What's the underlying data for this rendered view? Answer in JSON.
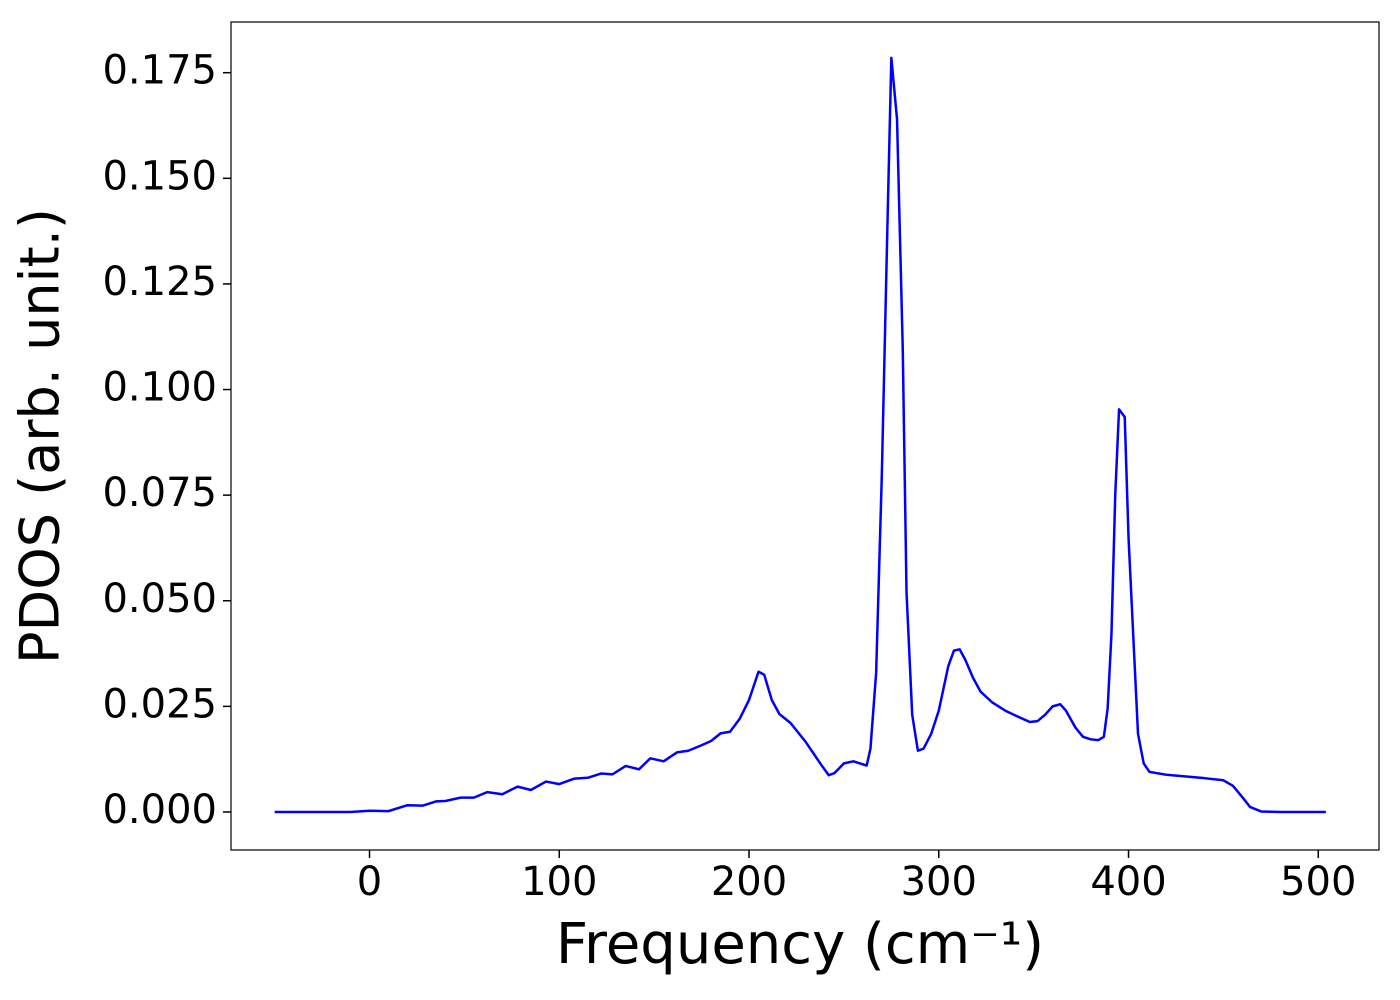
{
  "chart_data": {
    "type": "line",
    "xlabel": "Frequency (cm⁻¹)",
    "ylabel": "PDOS (arb. unit.)",
    "xlim": [
      -73,
      532
    ],
    "ylim": [
      -0.009,
      0.187
    ],
    "xticks": [
      0,
      100,
      200,
      300,
      400,
      500
    ],
    "yticks": [
      {
        "value": 0,
        "label": "0.000"
      },
      {
        "value": 0.025,
        "label": "0.025"
      },
      {
        "value": 0.05,
        "label": "0.050"
      },
      {
        "value": 0.075,
        "label": "0.075"
      },
      {
        "value": 0.1,
        "label": "0.100"
      },
      {
        "value": 0.125,
        "label": "0.125"
      },
      {
        "value": 0.15,
        "label": "0.150"
      },
      {
        "value": 0.175,
        "label": "0.175"
      }
    ],
    "grid": false,
    "x": [
      -50,
      -10,
      0,
      10,
      20,
      28,
      35,
      40,
      48,
      55,
      62,
      70,
      78,
      85,
      93,
      100,
      108,
      115,
      122,
      128,
      135,
      142,
      148,
      155,
      162,
      168,
      175,
      180,
      185,
      190,
      195,
      200,
      205,
      208,
      212,
      216,
      222,
      230,
      238,
      242,
      245,
      250,
      255,
      262,
      264,
      267,
      270,
      273,
      275,
      278,
      281,
      283,
      286,
      289,
      292,
      296,
      300,
      305,
      308,
      311,
      314,
      318,
      322,
      328,
      335,
      342,
      348,
      352,
      356,
      360,
      364,
      367,
      372,
      376,
      380,
      384,
      387,
      389,
      391,
      393,
      395,
      398,
      400,
      403,
      405,
      408,
      411,
      420,
      440,
      450,
      455,
      460,
      464,
      470,
      480,
      504
    ],
    "series": [
      {
        "color": "#0000ff",
        "values": [
          0,
          0,
          0.0003,
          0.0002,
          0.0016,
          0.0015,
          0.0025,
          0.0026,
          0.0034,
          0.0034,
          0.0047,
          0.0042,
          0.006,
          0.0052,
          0.0072,
          0.0066,
          0.0079,
          0.0081,
          0.0091,
          0.0089,
          0.0109,
          0.0101,
          0.0127,
          0.012,
          0.0141,
          0.0145,
          0.0158,
          0.0168,
          0.0186,
          0.019,
          0.022,
          0.0265,
          0.0332,
          0.0325,
          0.0265,
          0.0232,
          0.021,
          0.0165,
          0.0112,
          0.0087,
          0.0092,
          0.0115,
          0.012,
          0.011,
          0.015,
          0.033,
          0.08,
          0.14,
          0.1785,
          0.164,
          0.11,
          0.052,
          0.023,
          0.0145,
          0.015,
          0.0185,
          0.024,
          0.0345,
          0.0382,
          0.0385,
          0.036,
          0.0318,
          0.0285,
          0.026,
          0.024,
          0.0225,
          0.0213,
          0.0215,
          0.023,
          0.025,
          0.0255,
          0.024,
          0.02,
          0.0178,
          0.0172,
          0.017,
          0.0178,
          0.0245,
          0.042,
          0.075,
          0.0953,
          0.0935,
          0.065,
          0.037,
          0.0185,
          0.0115,
          0.0095,
          0.0088,
          0.008,
          0.0075,
          0.0062,
          0.0035,
          0.0012,
          0.0001,
          0,
          0
        ]
      }
    ]
  }
}
